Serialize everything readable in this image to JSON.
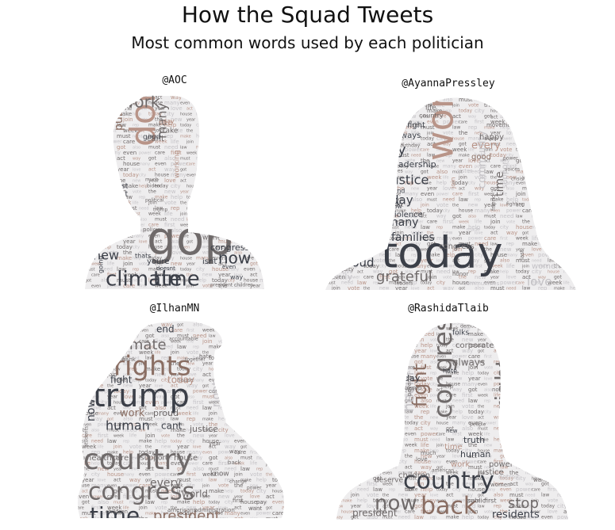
{
  "title": "How the Squad Tweets",
  "subtitle": "Most common words used by each politician",
  "colors": {
    "dark": "#3b3f48",
    "mid": "#6f6a6a",
    "brown": "#8a6e63",
    "rose": "#b89488",
    "light": "#c4c2c6",
    "pale": "#dcdadd"
  },
  "panels": [
    {
      "handle": "@AOC",
      "words": [
        {
          "t": "gop",
          "s": 58,
          "c": "mid"
        },
        {
          "t": "dont",
          "s": 44,
          "c": "rose",
          "r": -90
        },
        {
          "t": "climate",
          "s": 26,
          "c": "dark"
        },
        {
          "t": "time",
          "s": 26,
          "c": "dark"
        },
        {
          "t": "work",
          "s": 20,
          "c": "mid"
        },
        {
          "t": "now",
          "s": 20,
          "c": "dark"
        },
        {
          "t": "new",
          "s": 16,
          "c": "dark"
        },
        {
          "t": "public",
          "s": 14,
          "c": "brown",
          "r": -90
        },
        {
          "t": "many",
          "s": 16,
          "c": "mid",
          "r": -90
        },
        {
          "t": "cant",
          "s": 10,
          "c": "mid"
        },
        {
          "t": "congress",
          "s": 11,
          "c": "dark"
        },
        {
          "t": "want",
          "s": 9,
          "c": "mid"
        },
        {
          "t": "youre",
          "s": 10,
          "c": "dark"
        },
        {
          "t": "isnt",
          "s": 10,
          "c": "dark"
        },
        {
          "t": "members",
          "s": 8,
          "c": "mid"
        },
        {
          "t": "policy",
          "s": 7,
          "c": "mid"
        },
        {
          "t": "white",
          "s": 8,
          "c": "mid"
        },
        {
          "t": "think",
          "s": 8,
          "c": "dark"
        },
        {
          "t": "see",
          "s": 10,
          "c": "rose"
        },
        {
          "t": "good",
          "s": 9,
          "c": "dark"
        },
        {
          "t": "take",
          "s": 9,
          "c": "mid"
        },
        {
          "t": "day",
          "s": 8,
          "c": "rose"
        },
        {
          "t": "right",
          "s": 9,
          "c": "dark"
        },
        {
          "t": "last",
          "s": 9,
          "c": "dark"
        },
        {
          "t": "got",
          "s": 8,
          "c": "dark"
        },
        {
          "t": "working",
          "s": 9,
          "c": "rose",
          "r": -90
        },
        {
          "t": "theyre",
          "s": 7,
          "c": "mid"
        },
        {
          "t": "bc",
          "s": 8,
          "c": "dark"
        },
        {
          "t": "way",
          "s": 8,
          "c": "dark"
        },
        {
          "t": "going",
          "s": 8,
          "c": "dark",
          "r": -90
        },
        {
          "t": "doesnt",
          "s": 7,
          "c": "dark"
        },
        {
          "t": "thats",
          "s": 8,
          "c": "dark"
        },
        {
          "t": "fact",
          "s": 6,
          "c": "mid"
        },
        {
          "t": "even",
          "s": 7,
          "c": "dark"
        },
        {
          "t": "president",
          "s": 6,
          "c": "mid"
        },
        {
          "t": "children",
          "s": 6,
          "c": "mid"
        },
        {
          "t": "trump",
          "s": 6,
          "c": "mid"
        },
        {
          "t": "today",
          "s": 6,
          "c": "dark",
          "r": -90
        },
        {
          "t": "political",
          "s": 6,
          "c": "mid"
        },
        {
          "t": "much",
          "s": 6,
          "c": "mid"
        },
        {
          "t": "biden",
          "s": 6,
          "c": "mid"
        },
        {
          "t": "pay",
          "s": 6,
          "c": "dark"
        }
      ]
    },
    {
      "handle": "@AyannaPressley",
      "words": [
        {
          "t": "today",
          "s": 54,
          "c": "dark"
        },
        {
          "t": "work",
          "s": 46,
          "c": "rose",
          "r": -90
        },
        {
          "t": "justice",
          "s": 16,
          "c": "dark"
        },
        {
          "t": "ty",
          "s": 18,
          "c": "dark"
        },
        {
          "t": "grateful",
          "s": 18,
          "c": "mid"
        },
        {
          "t": "families",
          "s": 14,
          "c": "dark"
        },
        {
          "t": "proud",
          "s": 15,
          "c": "dark"
        },
        {
          "t": "many",
          "s": 14,
          "c": "dark"
        },
        {
          "t": "day",
          "s": 15,
          "c": "dark"
        },
        {
          "t": "every",
          "s": 13,
          "c": "rose"
        },
        {
          "t": "community",
          "s": 13,
          "c": "light",
          "r": -90
        },
        {
          "t": "time",
          "s": 14,
          "c": "mid",
          "r": -90
        },
        {
          "t": "love",
          "s": 15,
          "c": "light"
        },
        {
          "t": "leadership",
          "s": 11,
          "c": "dark"
        },
        {
          "t": "fight",
          "s": 10,
          "c": "dark"
        },
        {
          "t": "always",
          "s": 10,
          "c": "dark"
        },
        {
          "t": "congress",
          "s": 10,
          "c": "mid"
        },
        {
          "t": "violence",
          "s": 10,
          "c": "dark"
        },
        {
          "t": "women",
          "s": 10,
          "c": "light"
        },
        {
          "t": "family",
          "s": 11,
          "c": "light"
        },
        {
          "t": "support",
          "s": 10,
          "c": "light",
          "r": -90
        },
        {
          "t": "good",
          "s": 10,
          "c": "brown"
        },
        {
          "t": "happy",
          "s": 10,
          "c": "mid"
        },
        {
          "t": "life",
          "s": 9,
          "c": "mid"
        },
        {
          "t": "country",
          "s": 8,
          "c": "mid"
        },
        {
          "t": "movement",
          "s": 7,
          "c": "mid"
        },
        {
          "t": "stand",
          "s": 8,
          "c": "dark"
        },
        {
          "t": "back",
          "s": 7,
          "c": "dark"
        },
        {
          "t": "now",
          "s": 7,
          "c": "dark"
        },
        {
          "t": "year",
          "s": 7,
          "c": "mid"
        },
        {
          "t": "activist",
          "s": 6,
          "c": "mid"
        },
        {
          "t": "birthday",
          "s": 6,
          "c": "mid"
        },
        {
          "t": "made",
          "s": 6,
          "c": "light"
        },
        {
          "t": "honor",
          "s": 7,
          "c": "mid"
        },
        {
          "t": "friend",
          "s": 7,
          "c": "mid",
          "r": -90
        },
        {
          "t": "sister",
          "s": 7,
          "c": "light"
        },
        {
          "t": "vote",
          "s": 7,
          "c": "dark"
        },
        {
          "t": "join",
          "s": 8,
          "c": "rose",
          "r": -90
        },
        {
          "t": "equity",
          "s": 7,
          "c": "mid"
        },
        {
          "t": "communities",
          "s": 7,
          "c": "light"
        },
        {
          "t": "little",
          "s": 6,
          "c": "mid"
        },
        {
          "t": "lives",
          "s": 6,
          "c": "mid"
        },
        {
          "t": "crisis",
          "s": 6,
          "c": "mid"
        },
        {
          "t": "power",
          "s": 6,
          "c": "mid"
        },
        {
          "t": "voices",
          "s": 6,
          "c": "mid"
        },
        {
          "t": "leaders",
          "s": 6,
          "c": "mid"
        },
        {
          "t": "last",
          "s": 7,
          "c": "mid",
          "r": -90
        },
        {
          "t": "act",
          "s": 6,
          "c": "mid"
        },
        {
          "t": "fighting",
          "s": 6,
          "c": "mid"
        }
      ]
    },
    {
      "handle": "@IlhanMN",
      "words": [
        {
          "t": "trump",
          "s": 40,
          "c": "dark"
        },
        {
          "t": "country",
          "s": 36,
          "c": "mid"
        },
        {
          "t": "congress",
          "s": 30,
          "c": "mid"
        },
        {
          "t": "rights",
          "s": 34,
          "c": "brown"
        },
        {
          "t": "time",
          "s": 28,
          "c": "dark"
        },
        {
          "t": "president",
          "s": 18,
          "c": "brown"
        },
        {
          "t": "climate",
          "s": 18,
          "c": "mid"
        },
        {
          "t": "human",
          "s": 16,
          "c": "dark"
        },
        {
          "t": "work",
          "s": 13,
          "c": "brown"
        },
        {
          "t": "proud",
          "s": 11,
          "c": "mid"
        },
        {
          "t": "cant",
          "s": 12,
          "c": "dark"
        },
        {
          "t": "justice",
          "s": 11,
          "c": "mid"
        },
        {
          "t": "today",
          "s": 12,
          "c": "rose"
        },
        {
          "t": "fight",
          "s": 12,
          "c": "dark"
        },
        {
          "t": "end",
          "s": 12,
          "c": "dark"
        },
        {
          "t": "every",
          "s": 14,
          "c": "mid"
        },
        {
          "t": "world",
          "s": 12,
          "c": "mid"
        },
        {
          "t": "healthcare",
          "s": 10,
          "c": "mid"
        },
        {
          "t": "support",
          "s": 9,
          "c": "mid"
        },
        {
          "t": "house",
          "s": 10,
          "c": "mid"
        },
        {
          "t": "now",
          "s": 14,
          "c": "dark",
          "r": -90
        },
        {
          "t": "right",
          "s": 14,
          "c": "light",
          "r": -90
        },
        {
          "t": "know",
          "s": 9,
          "c": "mid"
        },
        {
          "t": "americans",
          "s": 7,
          "c": "mid"
        },
        {
          "t": "administration",
          "s": 7,
          "c": "mid"
        },
        {
          "t": "children",
          "s": 7,
          "c": "mid"
        },
        {
          "t": "first",
          "s": 7,
          "c": "mid"
        },
        {
          "t": "year",
          "s": 7,
          "c": "mid"
        },
        {
          "t": "white",
          "s": 7,
          "c": "mid"
        },
        {
          "t": "hate",
          "s": 7,
          "c": "mid"
        },
        {
          "t": "thank",
          "s": 7,
          "c": "mid"
        },
        {
          "t": "together",
          "s": 6,
          "c": "mid"
        },
        {
          "t": "accountable",
          "s": 6,
          "c": "mid"
        },
        {
          "t": "students",
          "s": 6,
          "c": "mid",
          "r": -90
        },
        {
          "t": "change",
          "s": 6,
          "c": "mid"
        },
        {
          "t": "power",
          "s": 6,
          "c": "mid"
        },
        {
          "t": "back",
          "s": 7,
          "c": "mid"
        },
        {
          "t": "want",
          "s": 7,
          "c": "mid"
        },
        {
          "t": "pay",
          "s": 7,
          "c": "mid"
        },
        {
          "t": "need",
          "s": 8,
          "c": "mid"
        },
        {
          "t": "way",
          "s": 7,
          "c": "mid"
        }
      ]
    },
    {
      "handle": "@RashidaTlaib",
      "words": [
        {
          "t": "country",
          "s": 30,
          "c": "dark"
        },
        {
          "t": "back",
          "s": 30,
          "c": "brown"
        },
        {
          "t": "now",
          "s": 26,
          "c": "mid"
        },
        {
          "t": "congress",
          "s": 32,
          "c": "mid",
          "r": -90
        },
        {
          "t": "fight",
          "s": 24,
          "c": "brown",
          "r": -90
        },
        {
          "t": "right",
          "s": 28,
          "c": "mid",
          "r": -90
        },
        {
          "t": "stop",
          "s": 18,
          "c": "mid"
        },
        {
          "t": "health",
          "s": 18,
          "c": "light",
          "r": -90
        },
        {
          "t": "residents",
          "s": 13,
          "c": "dark"
        },
        {
          "t": "president",
          "s": 12,
          "c": "mid"
        },
        {
          "t": "always",
          "s": 12,
          "c": "mid"
        },
        {
          "t": "today",
          "s": 11,
          "c": "dark"
        },
        {
          "t": "human",
          "s": 11,
          "c": "dark"
        },
        {
          "t": "justice",
          "s": 10,
          "c": "mid"
        },
        {
          "t": "truth",
          "s": 11,
          "c": "dark"
        },
        {
          "t": "power",
          "s": 10,
          "c": "mid"
        },
        {
          "t": "work",
          "s": 10,
          "c": "rose"
        },
        {
          "t": "time",
          "s": 10,
          "c": "rose"
        },
        {
          "t": "corporate",
          "s": 10,
          "c": "mid"
        },
        {
          "t": "folks",
          "s": 9,
          "c": "dark"
        },
        {
          "t": "children",
          "s": 10,
          "c": "mid"
        },
        {
          "t": "deserve",
          "s": 9,
          "c": "mid"
        },
        {
          "t": "public",
          "s": 8,
          "c": "mid"
        },
        {
          "t": "first",
          "s": 8,
          "c": "mid"
        },
        {
          "t": "detroit",
          "s": 8,
          "c": "light"
        },
        {
          "t": "women",
          "s": 7,
          "c": "mid"
        },
        {
          "t": "crisis",
          "s": 8,
          "c": "mid"
        },
        {
          "t": "hate",
          "s": 8,
          "c": "dark"
        },
        {
          "t": "nothing",
          "s": 7,
          "c": "mid"
        },
        {
          "t": "show",
          "s": 7,
          "c": "mid"
        },
        {
          "t": "democracy",
          "s": 6,
          "c": "mid"
        },
        {
          "t": "u.s",
          "s": 7,
          "c": "dark"
        },
        {
          "t": "tax",
          "s": 7,
          "c": "mid"
        },
        {
          "t": "got",
          "s": 7,
          "c": "dark"
        },
        {
          "t": "want",
          "s": 7,
          "c": "mid"
        },
        {
          "t": "love",
          "s": 7,
          "c": "mid"
        },
        {
          "t": "trump",
          "s": 7,
          "c": "mid"
        },
        {
          "t": "help",
          "s": 7,
          "c": "mid"
        },
        {
          "t": "new",
          "s": 7,
          "c": "dark"
        },
        {
          "t": "much",
          "s": 7,
          "c": "mid"
        },
        {
          "t": "american",
          "s": 6,
          "c": "mid"
        },
        {
          "t": "never",
          "s": 6,
          "c": "mid"
        },
        {
          "t": "people",
          "s": 6,
          "c": "mid"
        },
        {
          "t": "every",
          "s": 6,
          "c": "mid",
          "r": -90
        },
        {
          "t": "poverty",
          "s": 7,
          "c": "mid",
          "r": -90
        },
        {
          "t": "fighting",
          "s": 7,
          "c": "mid",
          "r": -90
        }
      ]
    }
  ]
}
